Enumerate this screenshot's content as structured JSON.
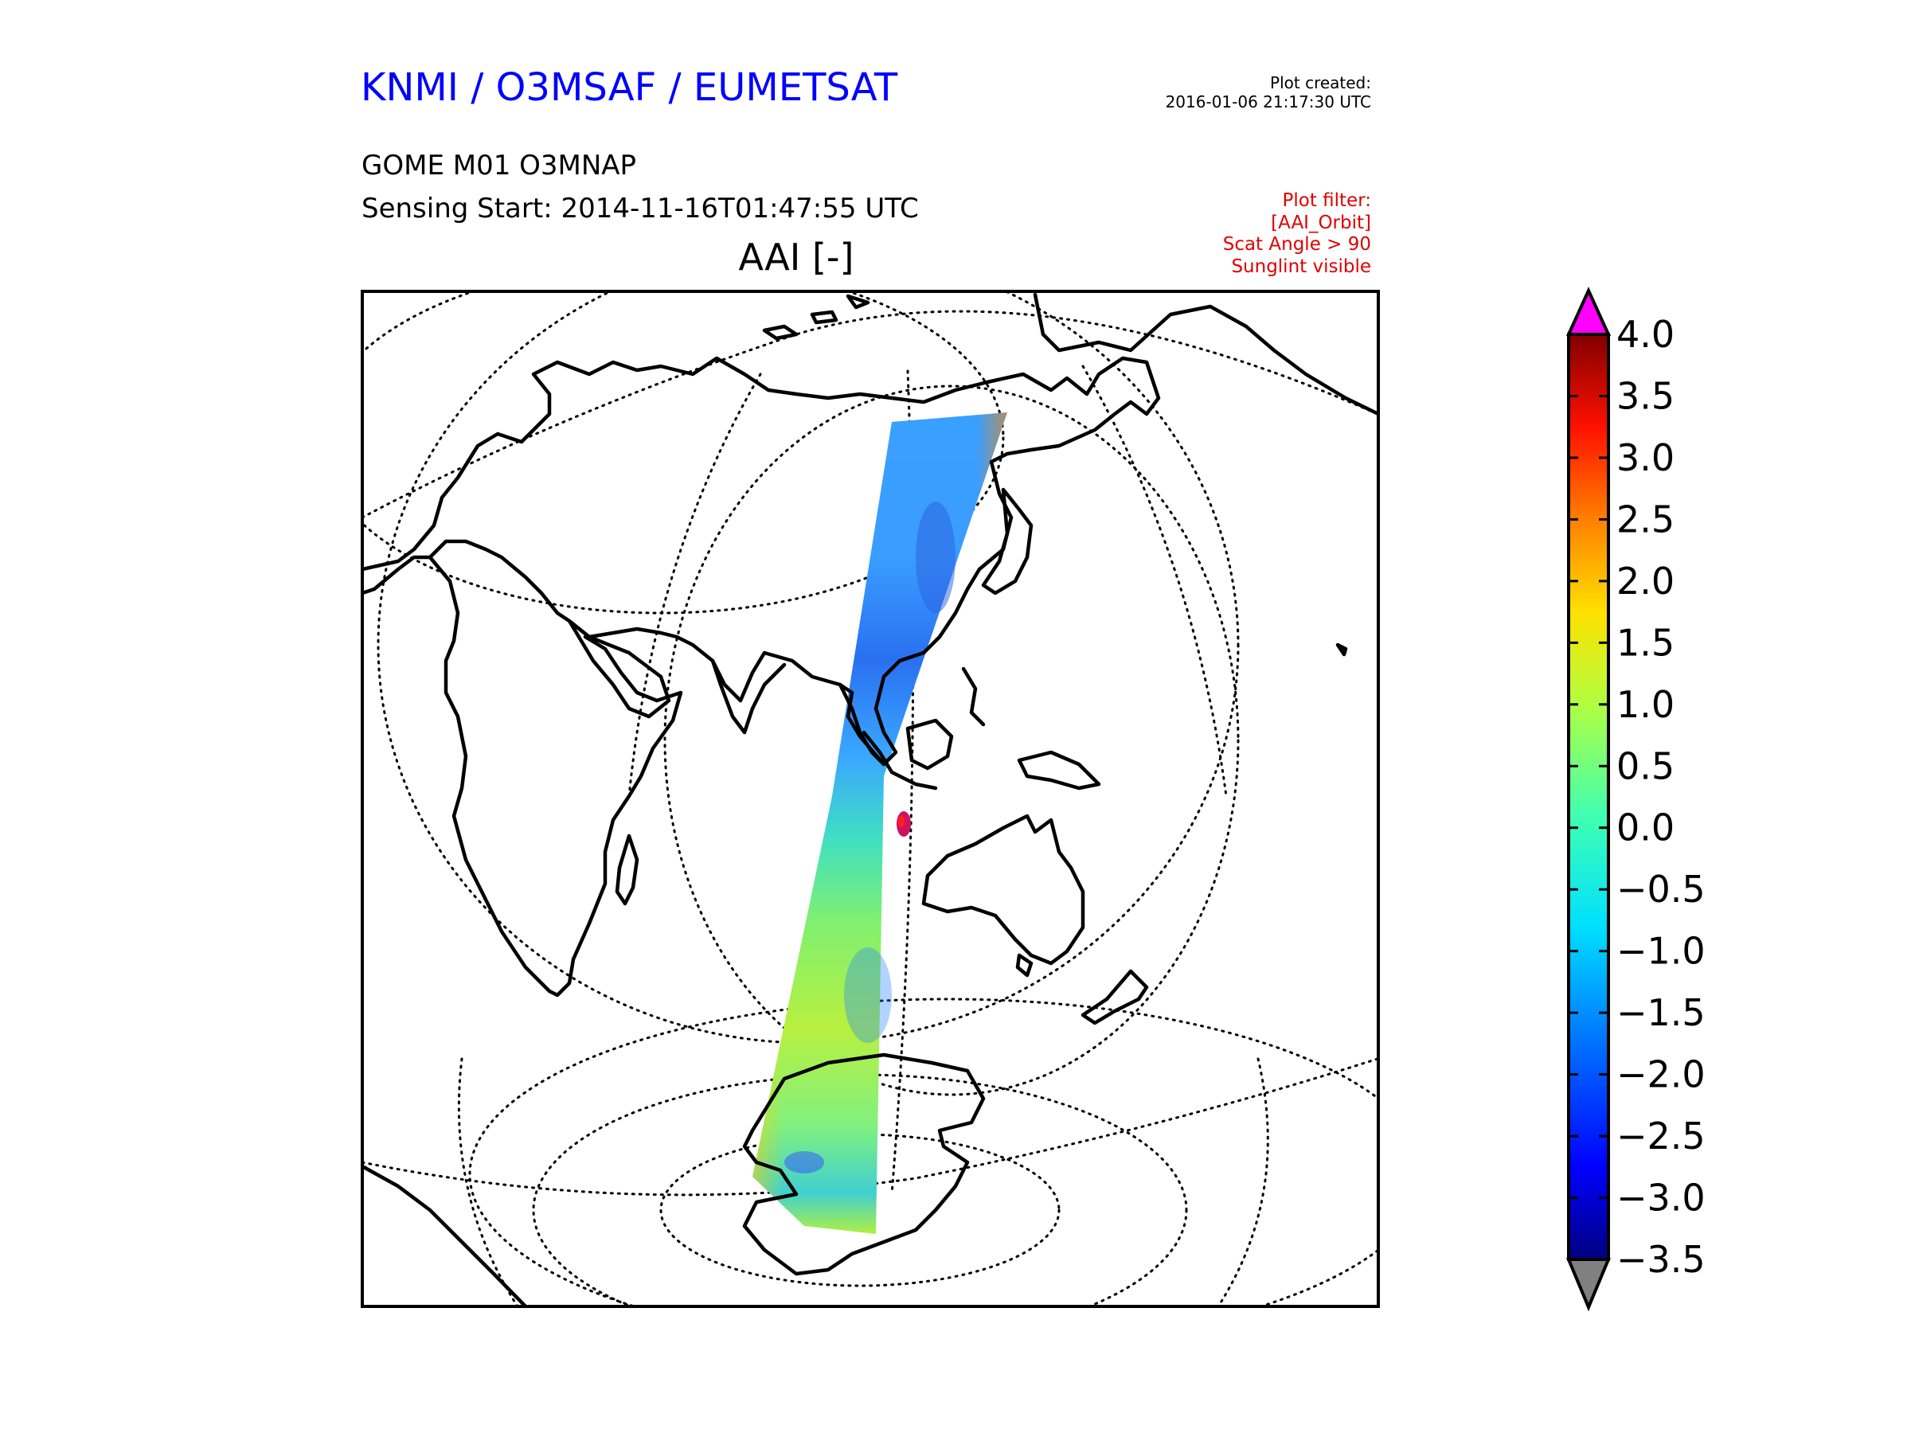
{
  "header": {
    "organisation": "KNMI / O3MSAF / EUMETSAT",
    "plot_created_label": "Plot created:",
    "plot_created_time": "2016-01-06 21:17:30 UTC",
    "product": "GOME M01 O3MNAP",
    "sensing_start": "Sensing Start: 2014-11-16T01:47:55 UTC",
    "filter_lines": [
      "Plot filter:",
      "[AAI_Orbit]",
      "Scat Angle > 90",
      "Sunglint visible"
    ]
  },
  "map": {
    "title": "AAI [-]",
    "projection": "orthographic",
    "center_lon_deg": 100,
    "swath_feature": "satellite orbit swath from East Asia to Antarctica"
  },
  "colorbar": {
    "min": -3.5,
    "max": 4.0,
    "tick_labels": [
      "4.0",
      "3.5",
      "3.0",
      "2.5",
      "2.0",
      "1.5",
      "1.0",
      "0.5",
      "0.0",
      "−0.5",
      "−1.0",
      "−1.5",
      "−2.0",
      "−2.5",
      "−3.0",
      "−3.5"
    ],
    "over_color": "#ff00ff",
    "under_color": "#808080",
    "stops": [
      "#000080",
      "#0000ff",
      "#0080ff",
      "#00e0ff",
      "#40ffb0",
      "#b0ff40",
      "#ffe000",
      "#ff8000",
      "#ff1000",
      "#800000"
    ]
  },
  "colors": {
    "title_blue": "#0000ff",
    "filter_red": "#e00000"
  }
}
